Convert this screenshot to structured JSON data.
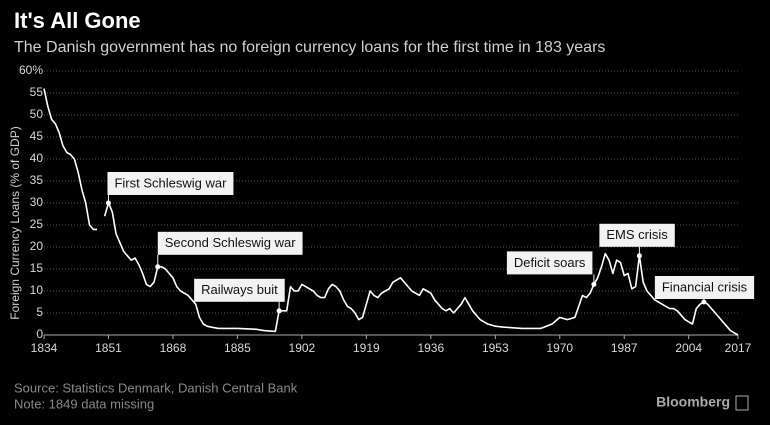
{
  "chart_data": {
    "type": "line",
    "title": "It's All Gone",
    "subtitle": "The Danish government has no foreign currency loans for the first time in 183 years",
    "y_label": "Foreign Currency Loans (% of GDP)",
    "source": "Source: Statistics Denmark, Danish Central Bank",
    "note": "Note: 1849 data missing",
    "brand": "Bloomberg",
    "xlim": [
      1834,
      2017
    ],
    "xticks": [
      1834,
      1851,
      1868,
      1885,
      1902,
      1919,
      1936,
      1953,
      1970,
      1987,
      2004,
      2017
    ],
    "ylim": [
      0,
      60
    ],
    "yticks": [
      0,
      5,
      10,
      15,
      20,
      25,
      30,
      35,
      40,
      45,
      50,
      55,
      {
        "value": 60,
        "label": "60%"
      }
    ],
    "grid": true,
    "series": [
      {
        "name": "Foreign currency loans",
        "color": "#ffffff",
        "x": [
          1834,
          1835,
          1836,
          1837,
          1838,
          1839,
          1840,
          1841,
          1842,
          1843,
          1844,
          1845,
          1846,
          1847,
          1848,
          1849,
          1850,
          1851,
          1852,
          1853,
          1854,
          1855,
          1856,
          1857,
          1858,
          1859,
          1860,
          1861,
          1862,
          1863,
          1864,
          1865,
          1866,
          1867,
          1868,
          1869,
          1870,
          1871,
          1872,
          1873,
          1874,
          1875,
          1876,
          1877,
          1878,
          1880,
          1885,
          1890,
          1892,
          1895,
          1896,
          1898,
          1899,
          1900,
          1901,
          1902,
          1903,
          1904,
          1905,
          1906,
          1907,
          1908,
          1909,
          1910,
          1911,
          1912,
          1913,
          1914,
          1915,
          1916,
          1917,
          1918,
          1919,
          1920,
          1921,
          1922,
          1923,
          1924,
          1925,
          1926,
          1927,
          1928,
          1929,
          1930,
          1931,
          1932,
          1933,
          1934,
          1935,
          1936,
          1937,
          1938,
          1939,
          1940,
          1941,
          1942,
          1943,
          1944,
          1945,
          1946,
          1947,
          1948,
          1949,
          1950,
          1951,
          1953,
          1955,
          1960,
          1965,
          1968,
          1970,
          1972,
          1974,
          1976,
          1977,
          1978,
          1979,
          1980,
          1981,
          1982,
          1983,
          1984,
          1985,
          1986,
          1987,
          1988,
          1989,
          1990,
          1991,
          1992,
          1993,
          1994,
          1995,
          1996,
          1997,
          1998,
          1999,
          2000,
          2001,
          2002,
          2003,
          2004,
          2005,
          2006,
          2007,
          2008,
          2009,
          2010,
          2011,
          2012,
          2013,
          2014,
          2015,
          2016,
          2017
        ],
        "values": [
          56,
          52,
          49,
          48,
          46,
          43,
          41.5,
          41,
          40,
          37,
          33,
          30,
          25,
          24,
          24,
          null,
          27,
          30,
          28,
          23,
          21,
          19,
          18,
          17,
          17.5,
          16,
          14,
          11.5,
          11,
          12,
          15.5,
          15.5,
          15,
          14,
          13,
          11,
          10,
          9.5,
          9,
          8,
          7,
          4,
          2.5,
          2,
          1.8,
          1.5,
          1.5,
          1.3,
          1,
          0.8,
          5.5,
          5.5,
          11,
          10,
          10,
          11.5,
          11,
          10.5,
          10,
          9,
          8.5,
          8.5,
          10.5,
          11.5,
          11,
          10,
          8,
          6.5,
          6,
          5,
          3.5,
          4,
          7,
          10,
          9,
          8.5,
          9.5,
          10,
          10.5,
          12,
          12.5,
          13,
          12,
          11,
          10,
          9.5,
          9,
          10.5,
          10,
          9.5,
          8,
          7,
          6,
          5.5,
          6,
          5,
          6,
          7,
          8.5,
          7,
          5.5,
          4.5,
          3.5,
          3,
          2.5,
          2,
          1.8,
          1.5,
          1.5,
          2.5,
          4,
          3.5,
          4,
          9,
          8.5,
          9.5,
          11.5,
          13,
          15.5,
          18.5,
          17,
          14,
          17,
          16.5,
          13.5,
          14,
          10.5,
          11,
          18,
          12,
          10,
          9,
          8,
          7.5,
          7,
          6.5,
          6,
          6,
          5.5,
          4.5,
          3.5,
          3,
          2.5,
          6,
          7,
          7.5,
          7,
          6,
          5,
          4,
          3,
          2,
          1,
          0.5,
          0
        ]
      }
    ],
    "annotations": [
      {
        "text": "First Schleswig war",
        "x": 1851,
        "y": 30
      },
      {
        "text": "Second Schleswig war",
        "x": 1864,
        "y": 15.5
      },
      {
        "text": "Railways buit",
        "x": 1896,
        "y": 5.5
      },
      {
        "text": "Deficit soars",
        "x": 1979,
        "y": 11.5
      },
      {
        "text": "EMS crisis",
        "x": 1991,
        "y": 18
      },
      {
        "text": "Financial crisis",
        "x": 2008,
        "y": 7.5
      }
    ]
  }
}
